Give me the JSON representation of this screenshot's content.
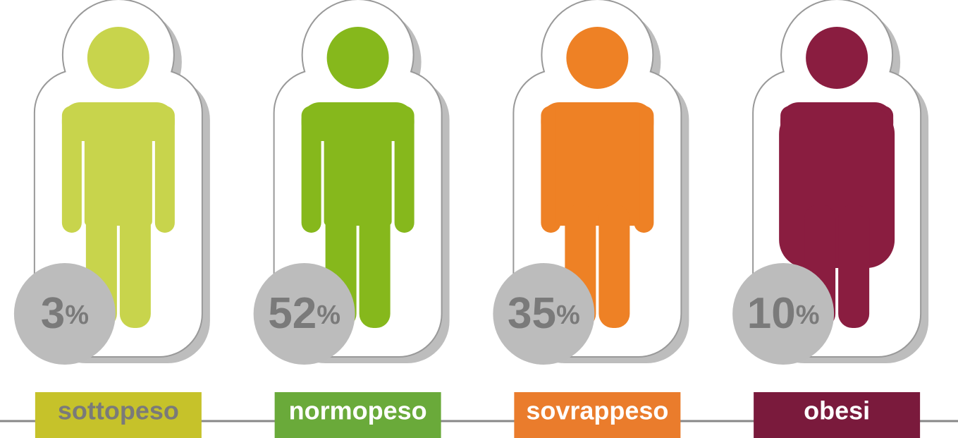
{
  "chart_data": {
    "type": "pictogram",
    "categories": [
      "sottopeso",
      "normopeso",
      "sovrappeso",
      "obesi"
    ],
    "values": [
      3,
      52,
      35,
      10
    ],
    "unit": "%",
    "colors": [
      "#c8d44c",
      "#86b81c",
      "#ee8125",
      "#8a1d40"
    ],
    "label_colors": [
      "#c6c22a",
      "#6aaa3a",
      "#ea7c2c",
      "#7a1a3c"
    ]
  }
}
